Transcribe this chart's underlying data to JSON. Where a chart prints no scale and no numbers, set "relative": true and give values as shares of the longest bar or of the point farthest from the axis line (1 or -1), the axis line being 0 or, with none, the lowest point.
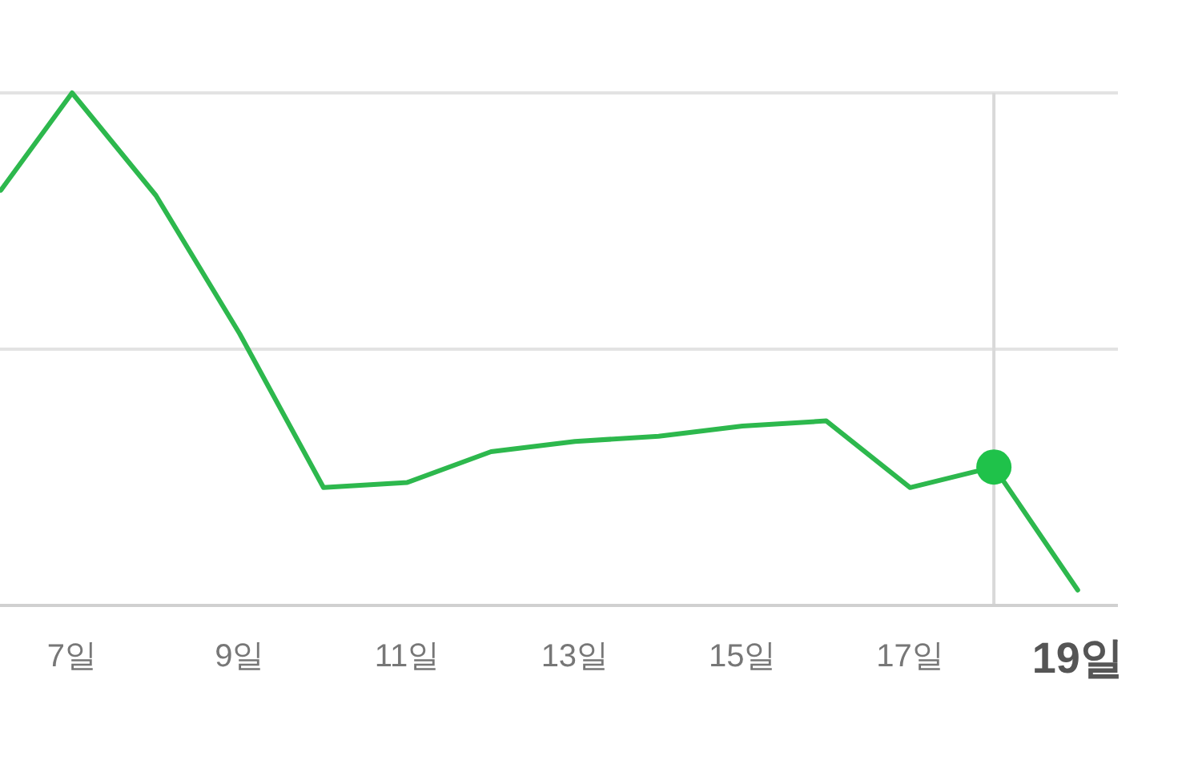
{
  "chart_data": {
    "type": "line",
    "relative": true,
    "xlim": [
      6.14,
      19.48
    ],
    "xticks": [
      {
        "value": 7,
        "label": "7일"
      },
      {
        "value": 9,
        "label": "9일"
      },
      {
        "value": 11,
        "label": "11일"
      },
      {
        "value": 13,
        "label": "13일"
      },
      {
        "value": 15,
        "label": "15일"
      },
      {
        "value": 17,
        "label": "17일"
      },
      {
        "value": 19,
        "label": "19일"
      }
    ],
    "ref_lines": [
      {
        "axis": "y",
        "value": 1,
        "color": "#e3e3e3"
      },
      {
        "axis": "y",
        "value": 0.5,
        "color": "#e3e3e3"
      },
      {
        "axis": "x",
        "value": 18,
        "color": "#d9d9d9"
      }
    ],
    "series": [
      {
        "color": "#2db84d",
        "x": [
          6.15,
          7,
          8,
          9,
          10,
          11,
          12,
          13,
          14,
          15,
          16,
          17,
          18,
          19
        ],
        "values": [
          0.81,
          1,
          0.8,
          0.53,
          0.23,
          0.24,
          0.3,
          0.32,
          0.33,
          0.35,
          0.36,
          0.23,
          0.27,
          0.03
        ]
      },
      {
        "type": "scatter",
        "color": "#1fc24a",
        "x": [
          18
        ],
        "values": [
          0.27
        ]
      }
    ]
  }
}
